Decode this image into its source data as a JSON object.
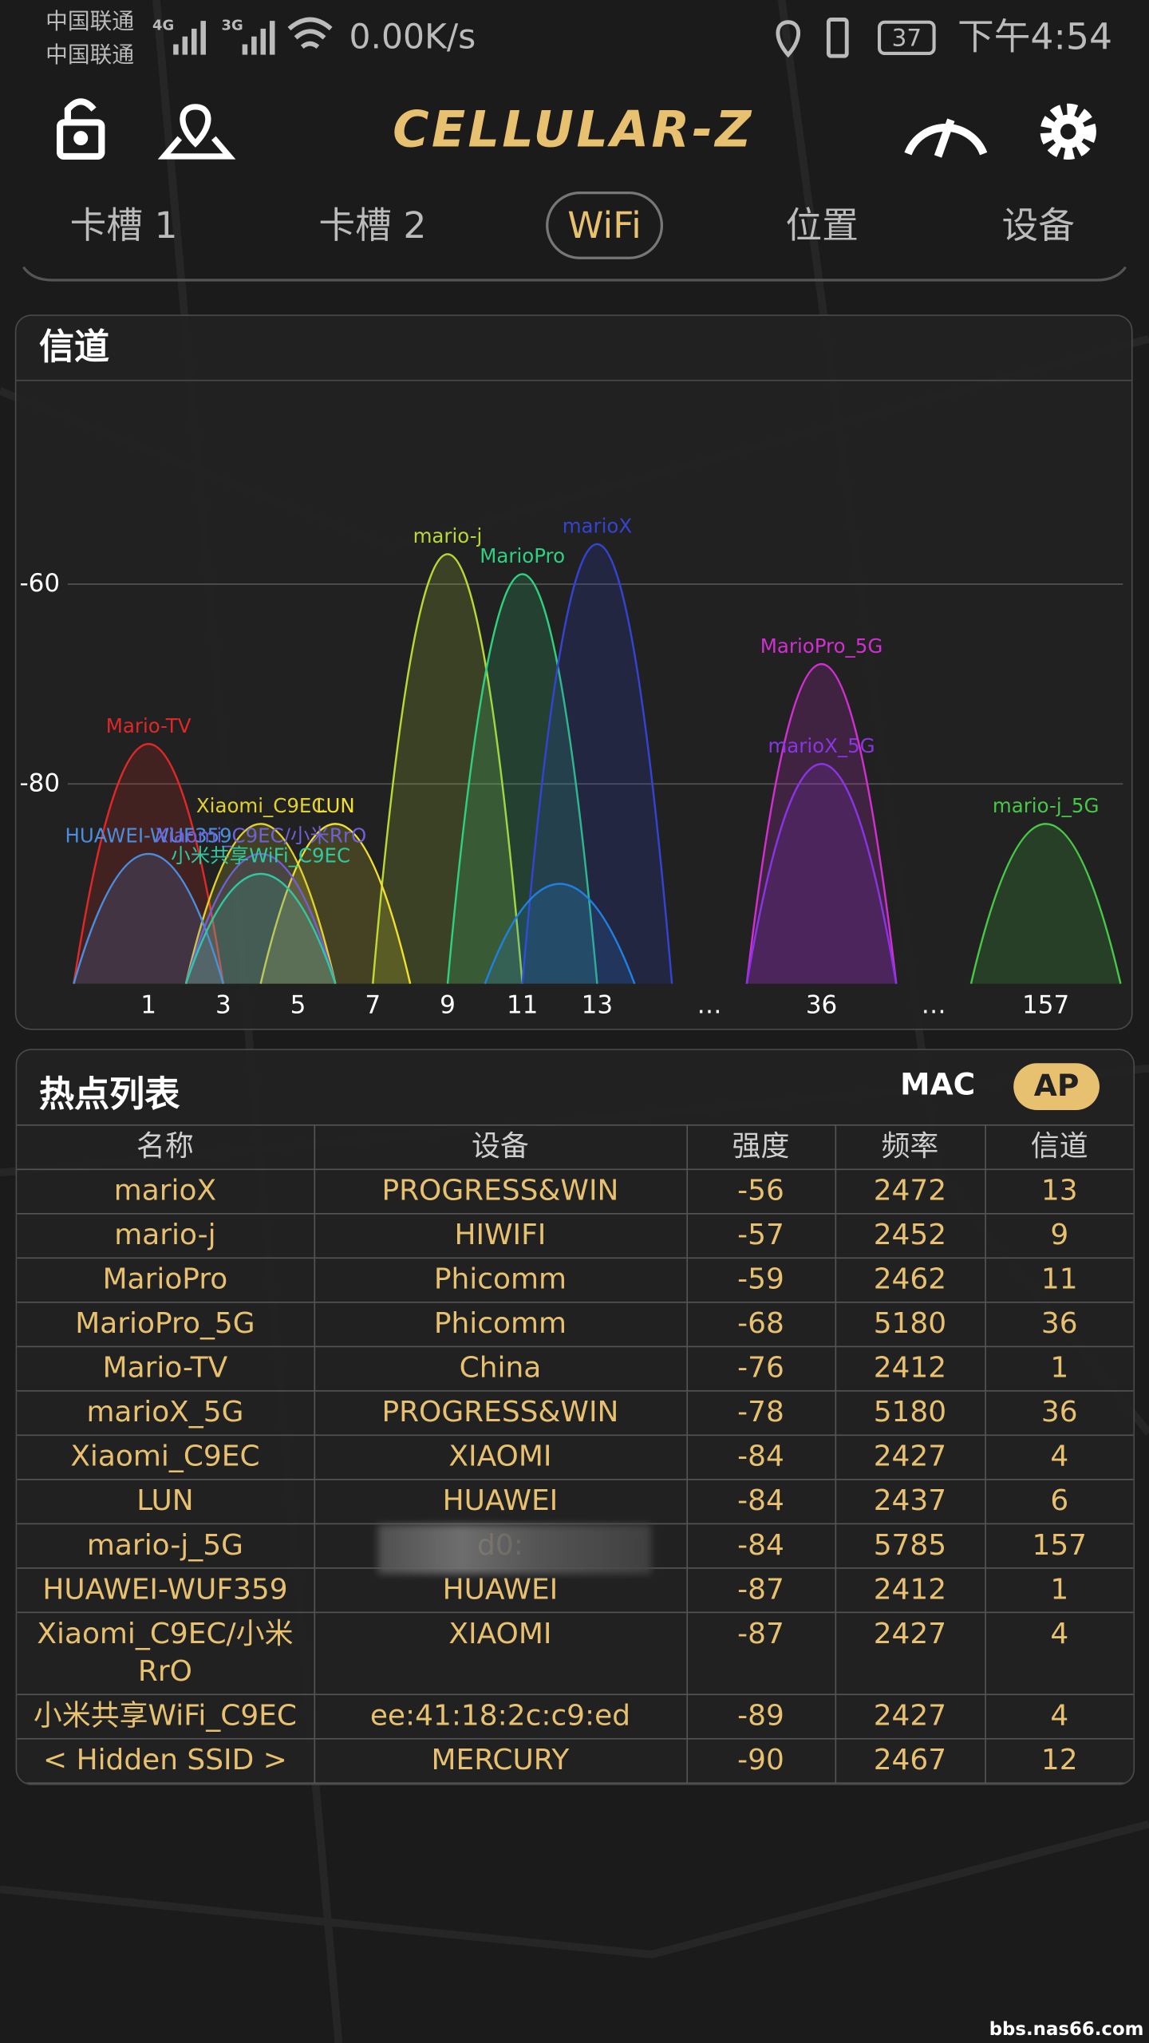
{
  "status_bar": {
    "carrier_1": "中国联通",
    "carrier_2": "中国联通",
    "network_1": "4G",
    "network_2": "3G",
    "speed": "0.00K/s",
    "battery": "37",
    "time": "下午4:54"
  },
  "app_bar": {
    "title": "CELLULAR-Z"
  },
  "tabs": [
    {
      "label": "卡槽 1"
    },
    {
      "label": "卡槽 2"
    },
    {
      "label": "WiFi",
      "active": true
    },
    {
      "label": "位置"
    },
    {
      "label": "设备"
    }
  ],
  "chart_data": {
    "type": "channel",
    "title": "信道",
    "ylim": [
      -100,
      -40
    ],
    "yticks": [
      -80,
      -60
    ],
    "grid": true,
    "xticks": [
      1,
      3,
      5,
      7,
      9,
      11,
      13,
      36,
      157
    ],
    "x_break_label": "…",
    "series": [
      {
        "name": "mario-j",
        "color": "#b8d838",
        "x": 9,
        "value": -57
      },
      {
        "name": "MarioPro",
        "color": "#30d080",
        "x": 11,
        "value": -59
      },
      {
        "name": "marioX",
        "color": "#3444d0",
        "x": 13,
        "value": -56
      },
      {
        "name": "MarioPro_5G",
        "color": "#d030d0",
        "x": 36,
        "value": -68
      },
      {
        "name": "marioX_5G",
        "color": "#8a34e4",
        "x": 36,
        "value": -78
      },
      {
        "name": "Mario-TV",
        "color": "#e02828",
        "x": 1,
        "value": -76
      },
      {
        "name": "Xiaomi_C9EC",
        "color": "#e0d030",
        "x": 4,
        "value": -84
      },
      {
        "name": "LUN",
        "color": "#f0e030",
        "x": 6,
        "value": -84
      },
      {
        "name": "mario-j_5G",
        "color": "#48c848",
        "x": 157,
        "value": -84
      },
      {
        "name": "HUAWEI-WUF359",
        "color": "#4a8ee0",
        "x": 1,
        "value": -87
      },
      {
        "name": "Xiaomi_C9EC/小米RrO",
        "color": "#7060d8",
        "x": 4,
        "value": -87
      },
      {
        "name": "小米共享WiFi_C9EC",
        "color": "#30c8a0",
        "x": 4,
        "value": -89
      },
      {
        "color": "#2080e0",
        "x": 12,
        "value": -90
      }
    ]
  },
  "hotspot_list": {
    "title": "热点列表",
    "toggle": [
      {
        "label": "MAC"
      },
      {
        "label": "AP",
        "active": true
      }
    ],
    "columns": [
      "名称",
      "设备",
      "强度",
      "频率",
      "信道"
    ],
    "rows": [
      [
        "marioX",
        "PROGRESS&WIN",
        -56,
        2472,
        13
      ],
      [
        "mario-j",
        "HIWIFI",
        -57,
        2452,
        9
      ],
      [
        "MarioPro",
        "Phicomm",
        -59,
        2462,
        11
      ],
      [
        "MarioPro_5G",
        "Phicomm",
        -68,
        5180,
        36
      ],
      [
        "Mario-TV",
        "China",
        -76,
        2412,
        1
      ],
      [
        "marioX_5G",
        "PROGRESS&WIN",
        -78,
        5180,
        36
      ],
      [
        "Xiaomi_C9EC",
        "XIAOMI",
        -84,
        2427,
        4
      ],
      [
        "LUN",
        "HUAWEI",
        -84,
        2437,
        6
      ],
      [
        "mario-j_5G",
        "d0:",
        -84,
        5785,
        157
      ],
      [
        "HUAWEI-WUF359",
        "HUAWEI",
        -87,
        2412,
        1
      ],
      [
        "Xiaomi_C9EC/小米RrO",
        "XIAOMI",
        -87,
        2427,
        4
      ],
      [
        "小米共享WiFi_C9EC",
        "ee:41:18:2c:c9:ed",
        -89,
        2427,
        4
      ],
      [
        "< Hidden SSID >",
        "MERCURY",
        -90,
        2467,
        12
      ]
    ]
  },
  "watermark": "bbs.nas66.com"
}
